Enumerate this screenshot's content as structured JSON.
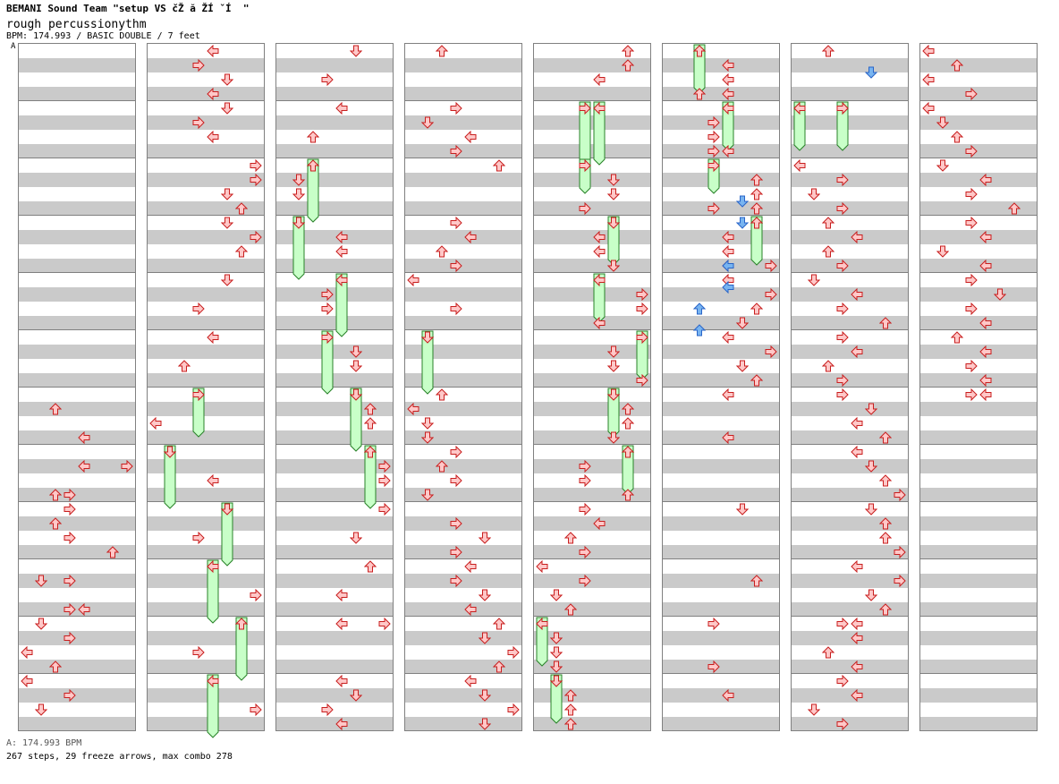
{
  "header": {
    "title": "BEMANI Sound Team \"setup VS čŽ ă ŽÍ ˇÍ  \"",
    "song": "rough percussionythm",
    "info": "BPM: 174.993 / BASIC DOUBLE / 7 feet"
  },
  "bpm_marker": "A",
  "footer": {
    "bpm_legend": "A: 174.993 BPM",
    "summary": "267 steps, 29 freeze arrows, max combo 278"
  },
  "colors": {
    "note": "#ffc8c8",
    "note_stroke": "#c81e1e",
    "freeze": "#c8ffc8",
    "freeze_stroke": "#288228",
    "shock": "#78b4f0",
    "shock_stroke": "#2864c8"
  },
  "lanes": [
    "left-1p",
    "down-1p",
    "up-1p",
    "right-1p",
    "left-2p",
    "down-2p",
    "up-2p",
    "right-2p"
  ],
  "columns": [
    {
      "notes": [
        [
          6,
          1,
          2
        ],
        [
          6,
          3,
          4
        ],
        [
          6,
          5,
          7
        ],
        [
          6,
          7,
          3
        ],
        [
          6,
          9,
          2
        ],
        [
          6,
          11,
          6
        ],
        [
          6,
          13,
          1
        ],
        [
          6,
          15,
          3
        ],
        [
          7,
          1,
          4
        ],
        [
          7,
          3,
          2
        ],
        [
          8,
          0,
          3
        ],
        [
          8,
          2,
          3
        ],
        [
          9,
          1,
          3
        ],
        [
          9,
          3,
          4
        ],
        [
          10,
          0,
          1
        ],
        [
          10,
          1,
          3
        ],
        [
          10,
          2,
          0
        ],
        [
          10,
          3,
          2
        ],
        [
          11,
          0,
          0
        ],
        [
          11,
          1,
          3
        ],
        [
          11,
          2,
          1
        ]
      ],
      "freezes": []
    },
    {
      "notes": [
        [
          0,
          0,
          4
        ],
        [
          0,
          1,
          3
        ],
        [
          0,
          2,
          5
        ],
        [
          0,
          3,
          4
        ],
        [
          1,
          0,
          5
        ],
        [
          1,
          1,
          3
        ],
        [
          1,
          2,
          4
        ],
        [
          2,
          0,
          7
        ],
        [
          2,
          1,
          7
        ],
        [
          2,
          2,
          5
        ],
        [
          2,
          3,
          6
        ],
        [
          3,
          0,
          5
        ],
        [
          3,
          1,
          7
        ],
        [
          3,
          2,
          6
        ],
        [
          4,
          0,
          5
        ],
        [
          4,
          2,
          3
        ],
        [
          5,
          0,
          4
        ],
        [
          5,
          2,
          2
        ],
        [
          6,
          2,
          0
        ],
        [
          7,
          2,
          4
        ],
        [
          8,
          2,
          3
        ],
        [
          9,
          2,
          7
        ],
        [
          10,
          2,
          3
        ],
        [
          11,
          2,
          7
        ]
      ],
      "freezes": [
        [
          6,
          0,
          3,
          3
        ],
        [
          7,
          0,
          1,
          4
        ],
        [
          8,
          0,
          5,
          4
        ],
        [
          9,
          0,
          4,
          4
        ],
        [
          10,
          0,
          6,
          4
        ],
        [
          11,
          0,
          4,
          4
        ]
      ]
    },
    {
      "notes": [
        [
          0,
          0,
          5
        ],
        [
          0,
          2,
          3
        ],
        [
          1,
          0,
          4
        ],
        [
          1,
          2,
          2
        ],
        [
          2,
          1,
          1
        ],
        [
          2,
          2,
          1
        ],
        [
          3,
          1,
          4
        ],
        [
          3,
          2,
          4
        ],
        [
          4,
          1,
          3
        ],
        [
          4,
          2,
          3
        ],
        [
          5,
          1,
          5
        ],
        [
          5,
          2,
          5
        ],
        [
          6,
          1,
          6
        ],
        [
          6,
          2,
          6
        ],
        [
          7,
          1,
          7
        ],
        [
          7,
          2,
          7
        ],
        [
          8,
          0,
          7
        ],
        [
          8,
          2,
          5
        ],
        [
          9,
          0,
          6
        ],
        [
          9,
          2,
          4
        ],
        [
          10,
          0,
          4
        ],
        [
          10,
          0,
          7
        ],
        [
          11,
          0,
          4
        ],
        [
          11,
          1,
          5
        ],
        [
          11,
          2,
          3
        ],
        [
          11,
          3,
          4
        ]
      ],
      "freezes": [
        [
          2,
          0,
          2,
          4
        ],
        [
          3,
          0,
          1,
          4
        ],
        [
          4,
          0,
          4,
          4
        ],
        [
          5,
          0,
          3,
          4
        ],
        [
          6,
          0,
          5,
          4
        ],
        [
          7,
          0,
          6,
          4
        ]
      ]
    },
    {
      "notes": [
        [
          0,
          0,
          2
        ],
        [
          1,
          0,
          3
        ],
        [
          1,
          1,
          1
        ],
        [
          1,
          2,
          4
        ],
        [
          1,
          3,
          3
        ],
        [
          2,
          0,
          6
        ],
        [
          3,
          0,
          3
        ],
        [
          3,
          1,
          4
        ],
        [
          3,
          2,
          2
        ],
        [
          3,
          3,
          3
        ],
        [
          4,
          0,
          0
        ],
        [
          4,
          2,
          3
        ],
        [
          6,
          0,
          2
        ],
        [
          6,
          1,
          0
        ],
        [
          6,
          2,
          1
        ],
        [
          6,
          3,
          1
        ],
        [
          7,
          0,
          3
        ],
        [
          7,
          1,
          2
        ],
        [
          7,
          2,
          3
        ],
        [
          7,
          3,
          1
        ],
        [
          8,
          1,
          3
        ],
        [
          8,
          2,
          5
        ],
        [
          8,
          3,
          3
        ],
        [
          9,
          0,
          4
        ],
        [
          9,
          1,
          3
        ],
        [
          9,
          2,
          5
        ],
        [
          9,
          3,
          4
        ],
        [
          10,
          0,
          6
        ],
        [
          10,
          1,
          5
        ],
        [
          10,
          2,
          7
        ],
        [
          10,
          3,
          6
        ],
        [
          11,
          0,
          4
        ],
        [
          11,
          1,
          5
        ],
        [
          11,
          2,
          7
        ],
        [
          11,
          3,
          5
        ]
      ],
      "freezes": [
        [
          5,
          0,
          1,
          4
        ]
      ]
    },
    {
      "notes": [
        [
          0,
          0,
          6
        ],
        [
          0,
          1,
          6
        ],
        [
          0,
          2,
          4
        ],
        [
          2,
          1,
          5
        ],
        [
          2,
          2,
          5
        ],
        [
          2,
          3,
          3
        ],
        [
          3,
          1,
          4
        ],
        [
          3,
          2,
          4
        ],
        [
          3,
          3,
          5
        ],
        [
          4,
          1,
          7
        ],
        [
          4,
          2,
          7
        ],
        [
          4,
          3,
          4
        ],
        [
          5,
          1,
          5
        ],
        [
          5,
          2,
          5
        ],
        [
          5,
          3,
          7
        ],
        [
          6,
          1,
          6
        ],
        [
          6,
          2,
          6
        ],
        [
          6,
          3,
          5
        ],
        [
          7,
          1,
          3
        ],
        [
          7,
          2,
          3
        ],
        [
          7,
          3,
          6
        ],
        [
          8,
          0,
          3
        ],
        [
          8,
          1,
          4
        ],
        [
          8,
          2,
          2
        ],
        [
          8,
          3,
          3
        ],
        [
          9,
          0,
          0
        ],
        [
          9,
          1,
          3
        ],
        [
          9,
          2,
          1
        ],
        [
          9,
          3,
          2
        ],
        [
          10,
          1,
          1
        ],
        [
          10,
          2,
          1
        ],
        [
          10,
          3,
          1
        ],
        [
          11,
          1,
          2
        ],
        [
          11,
          2,
          2
        ],
        [
          11,
          3,
          2
        ]
      ],
      "freezes": [
        [
          1,
          0,
          3,
          4
        ],
        [
          1,
          0,
          4,
          4
        ],
        [
          2,
          0,
          3,
          2
        ],
        [
          3,
          0,
          5,
          3
        ],
        [
          4,
          0,
          4,
          3
        ],
        [
          5,
          0,
          7,
          3
        ],
        [
          6,
          0,
          5,
          3
        ],
        [
          7,
          0,
          6,
          3
        ],
        [
          10,
          0,
          0,
          3
        ],
        [
          11,
          0,
          1,
          3
        ]
      ]
    },
    {
      "notes": [
        [
          0,
          1,
          4
        ],
        [
          0,
          2,
          4
        ],
        [
          0,
          3,
          2
        ],
        [
          0,
          3,
          4
        ],
        [
          1,
          1,
          3
        ],
        [
          1,
          2,
          3
        ],
        [
          1,
          3,
          3
        ],
        [
          1,
          3,
          4
        ],
        [
          2,
          1,
          6
        ],
        [
          2,
          2,
          6
        ],
        [
          2,
          3,
          3
        ],
        [
          2,
          3,
          6
        ],
        [
          3,
          1,
          4
        ],
        [
          3,
          2,
          4
        ],
        [
          3,
          3,
          4
        ],
        [
          3,
          3,
          7
        ],
        [
          4,
          0,
          4
        ],
        [
          4,
          1,
          7
        ],
        [
          4,
          2,
          6
        ],
        [
          4,
          3,
          5
        ],
        [
          5,
          0,
          4
        ],
        [
          5,
          1,
          7
        ],
        [
          5,
          2,
          5
        ],
        [
          5,
          3,
          6
        ],
        [
          6,
          0,
          4
        ],
        [
          6,
          3,
          4
        ],
        [
          8,
          0,
          5
        ],
        [
          9,
          1,
          6
        ],
        [
          10,
          0,
          3
        ],
        [
          10,
          3,
          3
        ],
        [
          11,
          1,
          4
        ]
      ],
      "freezes": [
        [
          0,
          0,
          2,
          3
        ],
        [
          1,
          0,
          4,
          3
        ],
        [
          2,
          0,
          3,
          2
        ],
        [
          3,
          0,
          6,
          3
        ]
      ]
    },
    {
      "notes": [
        [
          0,
          0,
          2
        ],
        [
          1,
          0,
          0
        ],
        [
          1,
          0,
          3
        ],
        [
          2,
          0,
          0
        ],
        [
          2,
          1,
          3
        ],
        [
          2,
          2,
          1
        ],
        [
          2,
          3,
          3
        ],
        [
          3,
          0,
          2
        ],
        [
          3,
          1,
          4
        ],
        [
          3,
          2,
          2
        ],
        [
          3,
          3,
          3
        ],
        [
          4,
          0,
          1
        ],
        [
          4,
          1,
          4
        ],
        [
          4,
          2,
          3
        ],
        [
          4,
          3,
          6
        ],
        [
          5,
          0,
          3
        ],
        [
          5,
          1,
          4
        ],
        [
          5,
          2,
          2
        ],
        [
          5,
          3,
          3
        ],
        [
          6,
          0,
          3
        ],
        [
          6,
          1,
          5
        ],
        [
          6,
          2,
          4
        ],
        [
          6,
          3,
          6
        ],
        [
          7,
          0,
          4
        ],
        [
          7,
          1,
          5
        ],
        [
          7,
          2,
          6
        ],
        [
          7,
          3,
          7
        ],
        [
          8,
          0,
          5
        ],
        [
          8,
          1,
          6
        ],
        [
          8,
          2,
          6
        ],
        [
          8,
          3,
          7
        ],
        [
          9,
          0,
          4
        ],
        [
          9,
          1,
          7
        ],
        [
          9,
          2,
          5
        ],
        [
          9,
          3,
          6
        ],
        [
          10,
          0,
          3
        ],
        [
          10,
          0,
          4
        ],
        [
          10,
          1,
          4
        ],
        [
          10,
          2,
          2
        ],
        [
          10,
          3,
          4
        ],
        [
          11,
          0,
          3
        ],
        [
          11,
          1,
          4
        ],
        [
          11,
          2,
          1
        ],
        [
          11,
          3,
          3
        ]
      ],
      "freezes": [
        [
          1,
          0,
          0,
          3
        ],
        [
          1,
          0,
          3,
          3
        ]
      ]
    },
    {
      "notes": [
        [
          0,
          0,
          0
        ],
        [
          0,
          1,
          2
        ],
        [
          0,
          2,
          0
        ],
        [
          0,
          3,
          3
        ],
        [
          1,
          0,
          0
        ],
        [
          1,
          1,
          1
        ],
        [
          1,
          2,
          2
        ],
        [
          1,
          3,
          3
        ],
        [
          2,
          0,
          1
        ],
        [
          2,
          1,
          4
        ],
        [
          2,
          2,
          3
        ],
        [
          2,
          3,
          6
        ],
        [
          3,
          0,
          3
        ],
        [
          3,
          1,
          4
        ],
        [
          3,
          2,
          1
        ],
        [
          3,
          3,
          4
        ],
        [
          4,
          0,
          3
        ],
        [
          4,
          1,
          5
        ],
        [
          4,
          2,
          3
        ],
        [
          4,
          3,
          4
        ],
        [
          5,
          0,
          2
        ],
        [
          5,
          1,
          4
        ],
        [
          5,
          2,
          3
        ],
        [
          5,
          3,
          4
        ],
        [
          6,
          0,
          3
        ],
        [
          6,
          0,
          4
        ]
      ],
      "freezes": []
    }
  ],
  "shocks": [
    [
      6,
      0,
      5
    ],
    [
      5,
      6,
      5
    ],
    [
      5,
      7,
      5
    ],
    [
      5,
      9,
      4
    ],
    [
      5,
      10,
      4
    ],
    [
      5,
      11,
      2
    ],
    [
      5,
      12,
      2
    ]
  ]
}
